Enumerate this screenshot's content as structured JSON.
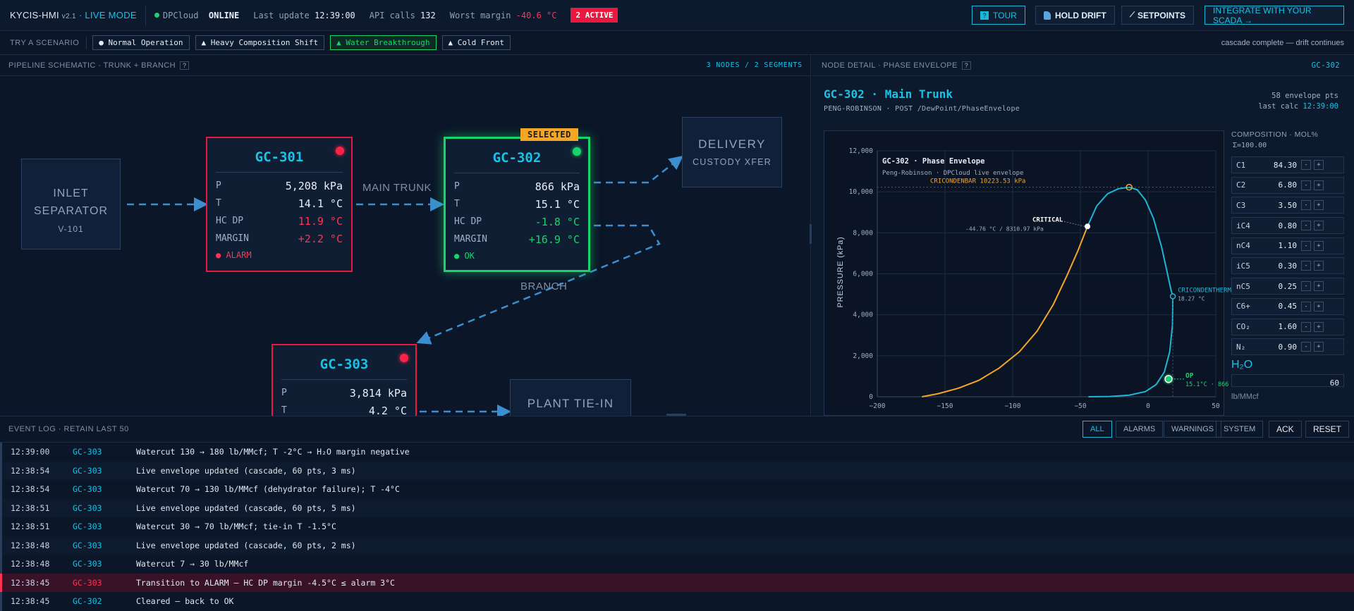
{
  "topbar": {
    "brand": "KYCIS-HMI",
    "version": "v2.1",
    "mode": "· LIVE MODE",
    "cloud_label": "DPCloud",
    "cloud_status": "ONLINE",
    "last_update_label": "Last update",
    "last_update": "12:39:00",
    "api_label": "API calls",
    "api_calls": "132",
    "worst_label": "Worst margin",
    "worst_margin": "-40.6 °C",
    "active_badge": "2 ACTIVE",
    "tour": "TOUR",
    "hold_drift": "HOLD DRIFT",
    "setpoints": "SETPOINTS",
    "integrate": "INTEGRATE WITH YOUR SCADA →"
  },
  "scenarios": {
    "label": "TRY A SCENARIO",
    "items": [
      "● Normal Operation",
      "▲ Heavy Composition Shift",
      "▲ Water Breakthrough",
      "▲ Cold Front"
    ],
    "status": "cascade complete — drift continues"
  },
  "schematic": {
    "header": "PIPELINE SCHEMATIC · TRUNK + BRANCH",
    "help": "?",
    "counts": "3 NODES / 2 SEGMENTS",
    "inlet": {
      "title": "INLET\nSEPARATOR",
      "line1": "INLET",
      "line2": "SEPARATOR",
      "sub": "V-101"
    },
    "delivery": {
      "title": "DELIVERY",
      "sub": "CUSTODY XFER"
    },
    "plant": {
      "title": "PLANT TIE-IN"
    },
    "main_trunk": "MAIN TRUNK",
    "branch": "BRANCH",
    "selected_badge": "SELECTED",
    "gc301": {
      "name": "GC-301",
      "p_label": "P",
      "p": "5,208 kPa",
      "t_label": "T",
      "t": "14.1 °C",
      "hc_label": "HC DP",
      "hc": "11.9 °C",
      "m_label": "MARGIN",
      "m": "+2.2 °C",
      "status": "● ALARM"
    },
    "gc302": {
      "name": "GC-302",
      "p_label": "P",
      "p": "866 kPa",
      "t_label": "T",
      "t": "15.1 °C",
      "hc_label": "HC DP",
      "hc": "-1.8 °C",
      "m_label": "MARGIN",
      "m": "+16.9 °C",
      "status": "● OK"
    },
    "gc303": {
      "name": "GC-303",
      "p_label": "P",
      "p": "3,814 kPa",
      "t_label": "T",
      "t": "4.2 °C"
    },
    "colors": {
      "alarm": "#e8183e",
      "ok": "#19d36b",
      "accent": "#19c3e6",
      "pipe": "#3b8fd0"
    }
  },
  "detail": {
    "header": "NODE DETAIL · PHASE ENVELOPE",
    "help": "?",
    "node_id": "GC-302",
    "title": "GC-302 · Main Trunk",
    "subtitle": "PENG-ROBINSON · POST /DewPoint/PhaseEnvelope",
    "env_pts": "58 envelope pts",
    "last_calc_label": "last calc",
    "last_calc": "12:39:00",
    "composition_header": "COMPOSITION · MOL%",
    "composition_sum": "Σ=100.00",
    "components": [
      {
        "name": "C1",
        "value": "84.30"
      },
      {
        "name": "C2",
        "value": "6.80"
      },
      {
        "name": "C3",
        "value": "3.50"
      },
      {
        "name": "iC4",
        "value": "0.80"
      },
      {
        "name": "nC4",
        "value": "1.10"
      },
      {
        "name": "iC5",
        "value": "0.30"
      },
      {
        "name": "nC5",
        "value": "0.25"
      },
      {
        "name": "C6+",
        "value": "0.45"
      },
      {
        "name": "CO₂",
        "value": "1.60"
      },
      {
        "name": "N₂",
        "value": "0.90"
      }
    ],
    "minus": "-",
    "plus": "+",
    "h2o_label": "H₂O",
    "h2o_value": "60",
    "h2o_unit": "lb/MMcf"
  },
  "chart_data": {
    "type": "line",
    "title": "GC-302 · Phase Envelope",
    "subtitle": "Peng-Robinson · DPCloud live envelope",
    "ylabel": "PRESSURE (kPa)",
    "xlim": [
      -200,
      50
    ],
    "ylim": [
      0,
      12000
    ],
    "xticks": [
      -200,
      -150,
      -100,
      -50,
      0,
      50
    ],
    "yticks": [
      0,
      2000,
      4000,
      6000,
      8000,
      10000,
      12000
    ],
    "xtick_labels": [
      "−200",
      "−150",
      "−100",
      "−50",
      "0",
      "50"
    ],
    "ytick_labels": [
      "0",
      "2,000",
      "4,000",
      "6,000",
      "8,000",
      "10,000",
      "12,000"
    ],
    "grid": true,
    "series": [
      {
        "color": "#f5a623",
        "x": [
          -167,
          -155,
          -140,
          -125,
          -110,
          -95,
          -82,
          -70,
          -60,
          -52,
          -44.76
        ],
        "y": [
          0,
          150,
          420,
          800,
          1400,
          2200,
          3200,
          4500,
          5900,
          7100,
          8310.97
        ]
      },
      {
        "color": "#1fb6d3",
        "x": [
          -44.76,
          -38,
          -30,
          -22,
          -14,
          -8,
          -2,
          4,
          10,
          14,
          17,
          18.27,
          18,
          16,
          12,
          6,
          -2,
          -14,
          -28,
          -44
        ],
        "y": [
          8310.97,
          9300,
          9900,
          10150,
          10223.53,
          10100,
          9600,
          8700,
          7300,
          6100,
          5200,
          4900,
          3500,
          2200,
          1200,
          600,
          250,
          80,
          15,
          0
        ]
      }
    ],
    "annotations": {
      "cricondenbar": "CRICONDENBAR 10223.53 kPa",
      "critical": "CRITICAL",
      "critical_value": "-44.76 °C / 8310.97 kPa",
      "cricondentherm": "CRICONDENTHERM",
      "cricondentherm_value": "18.27 °C",
      "op": "OP",
      "op_value": "15.1°C · 866"
    },
    "points": {
      "cricondenbar": [
        -14,
        10223.53
      ],
      "critical": [
        -44.76,
        8310.97
      ],
      "cricondentherm": [
        18.27,
        4900
      ],
      "op": [
        15.1,
        866
      ]
    }
  },
  "eventlog": {
    "header": "EVENT LOG · RETAIN LAST 50",
    "filters": [
      "ALL",
      "ALARMS",
      "WARNINGS",
      "SYSTEM"
    ],
    "ack": "ACK",
    "reset": "RESET",
    "rows": [
      {
        "time": "12:39:00",
        "node": "GC-303",
        "msg": "Watercut 130 → 180 lb/MMcf; T -2°C → H₂O margin negative",
        "kind": "info"
      },
      {
        "time": "12:38:54",
        "node": "GC-303",
        "msg": "Live envelope updated (cascade, 60 pts, 3 ms)",
        "kind": "info"
      },
      {
        "time": "12:38:54",
        "node": "GC-303",
        "msg": "Watercut 70 → 130 lb/MMcf (dehydrator failure); T -4°C",
        "kind": "info"
      },
      {
        "time": "12:38:51",
        "node": "GC-303",
        "msg": "Live envelope updated (cascade, 60 pts, 5 ms)",
        "kind": "info"
      },
      {
        "time": "12:38:51",
        "node": "GC-303",
        "msg": "Watercut 30 → 70 lb/MMcf; tie-in T -1.5°C",
        "kind": "info"
      },
      {
        "time": "12:38:48",
        "node": "GC-303",
        "msg": "Live envelope updated (cascade, 60 pts, 2 ms)",
        "kind": "info"
      },
      {
        "time": "12:38:48",
        "node": "GC-303",
        "msg": "Watercut 7 → 30 lb/MMcf",
        "kind": "info"
      },
      {
        "time": "12:38:45",
        "node": "GC-303",
        "msg": "Transition to ALARM — HC DP margin -4.5°C ≤ alarm 3°C",
        "kind": "alarm"
      },
      {
        "time": "12:38:45",
        "node": "GC-302",
        "msg": "Cleared — back to OK",
        "kind": "ok"
      }
    ]
  }
}
